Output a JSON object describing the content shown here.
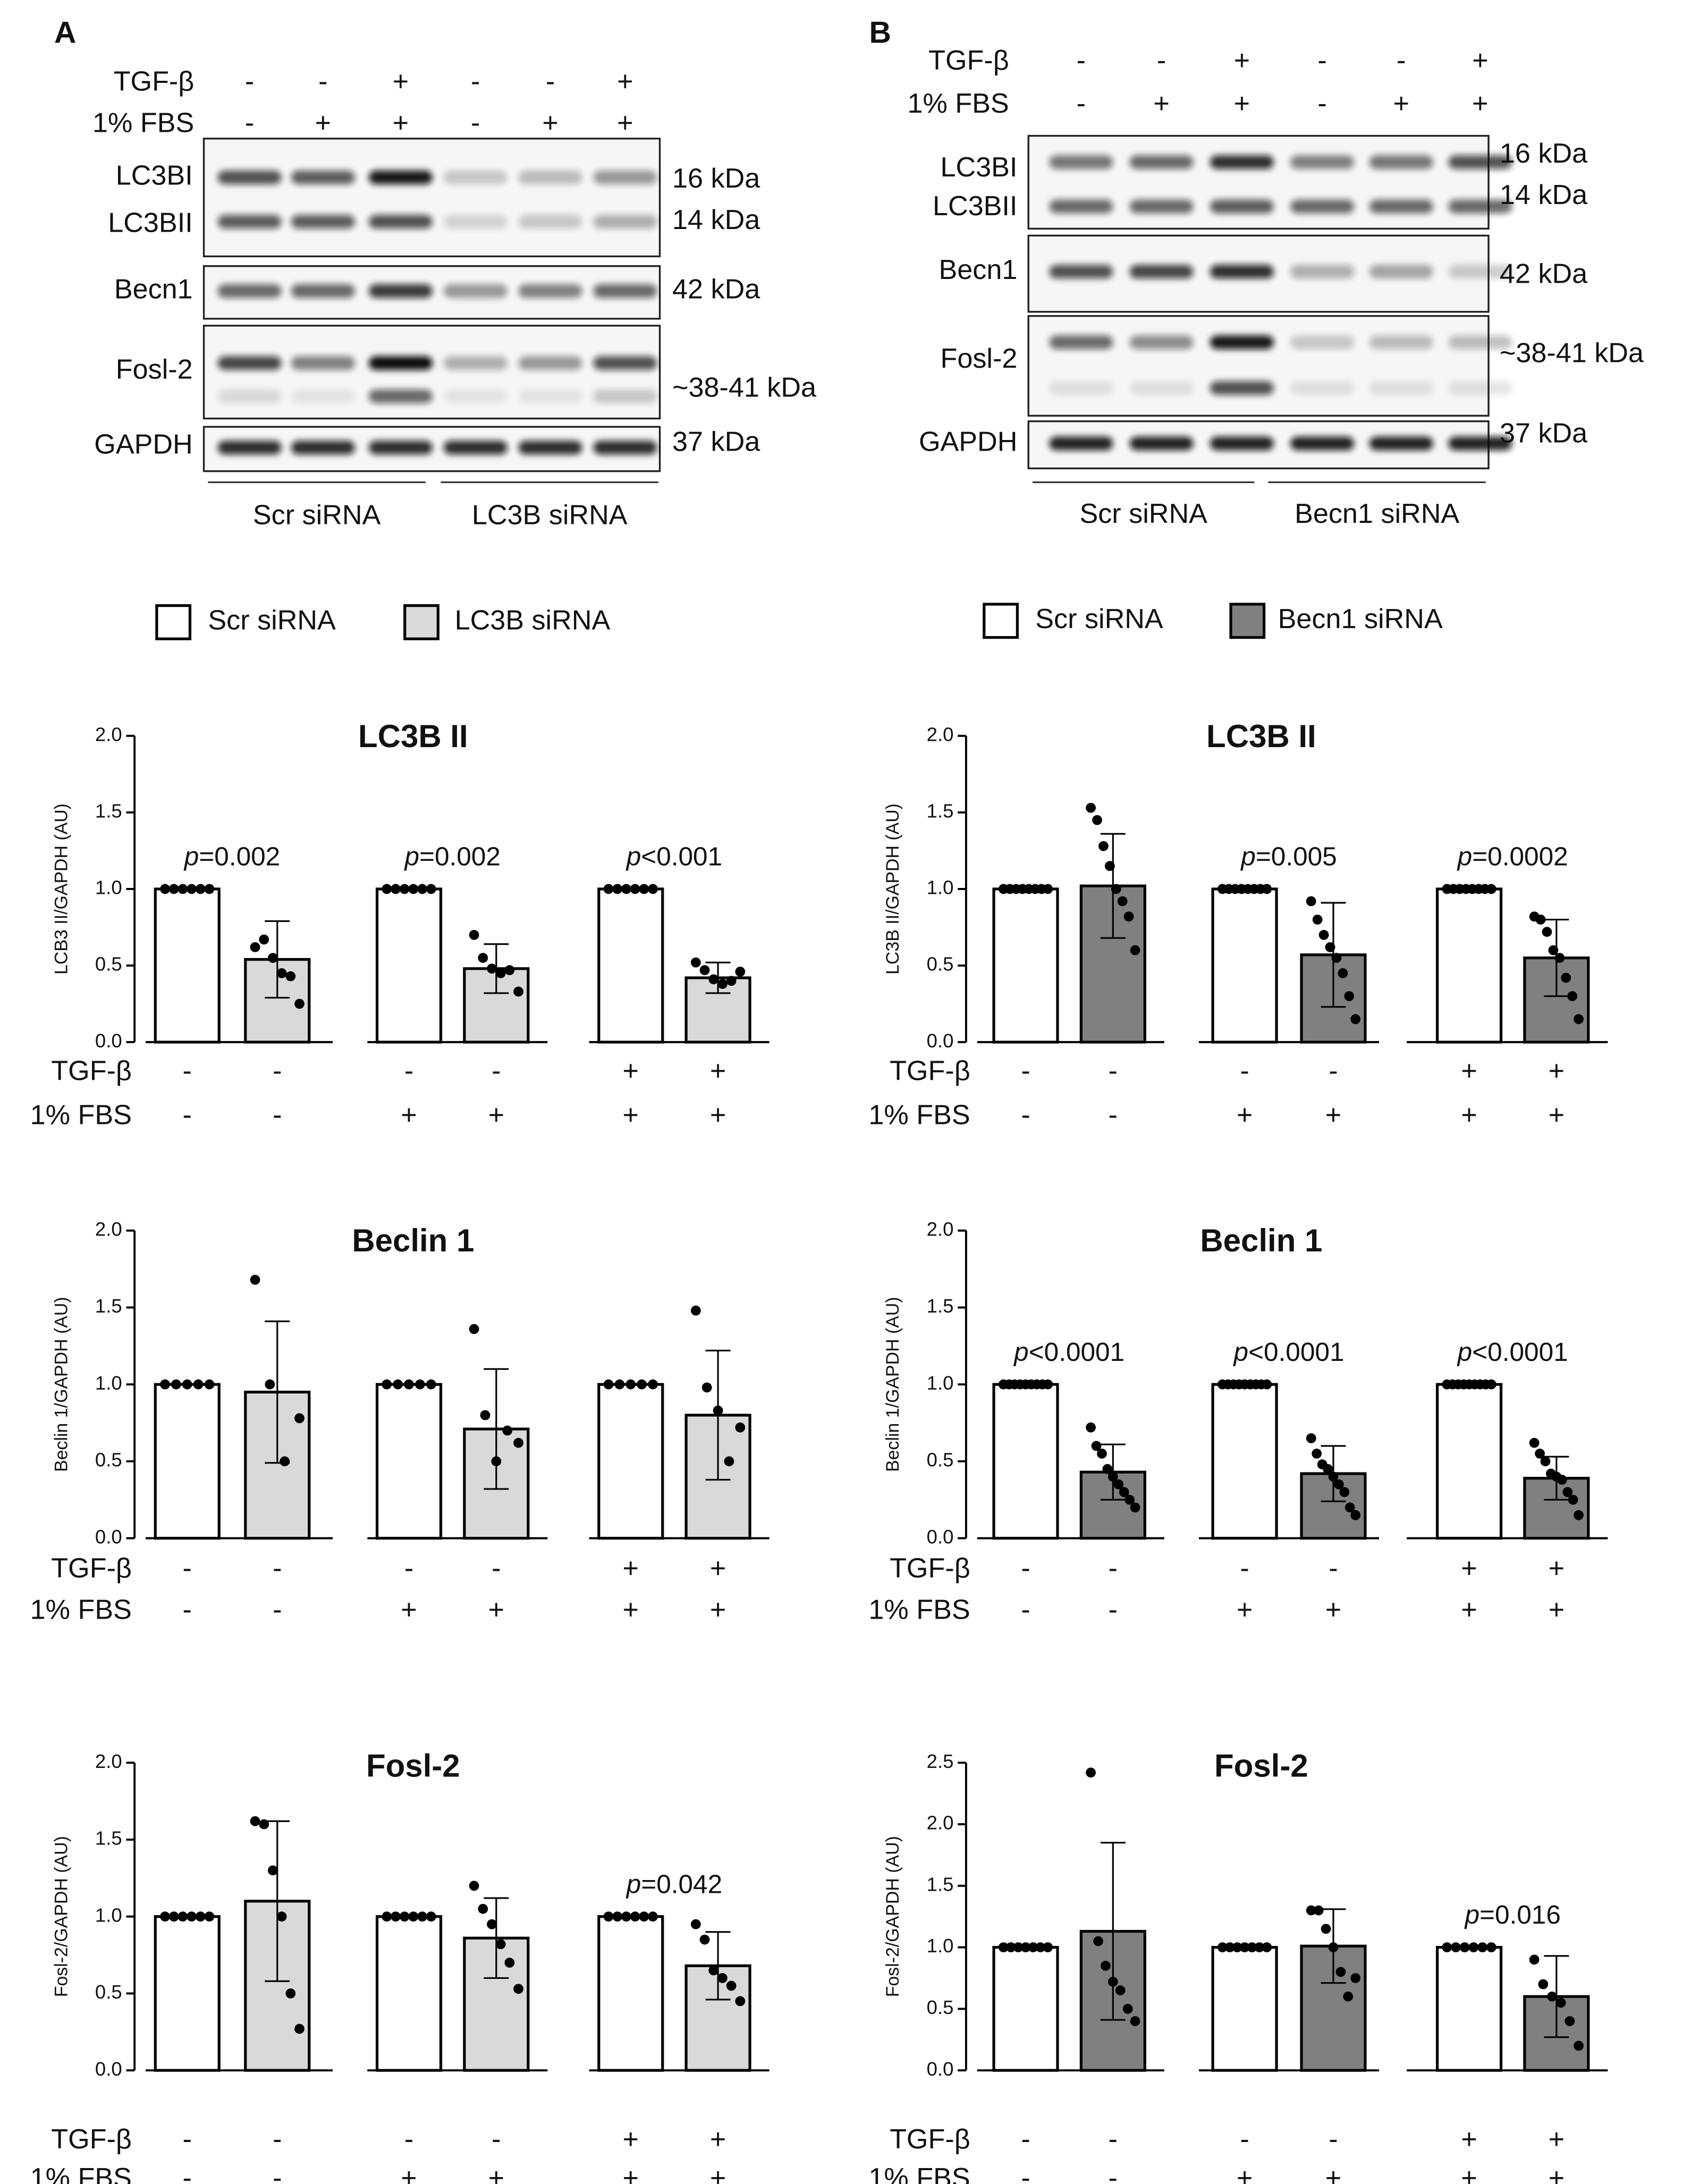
{
  "blots": [
    {
      "panel": "A",
      "conditions": [
        {
          "name": "TGF-β",
          "values": [
            "-",
            "-",
            "+",
            "-",
            "-",
            "+"
          ]
        },
        {
          "name": "1% FBS",
          "values": [
            "-",
            "+",
            "+",
            "-",
            "+",
            "+"
          ]
        }
      ],
      "rows": [
        {
          "labels": [
            "LC3BI",
            "LC3BII"
          ],
          "sizes": [
            "16 kDa",
            "14 kDa"
          ]
        },
        {
          "labels": [
            "Becn1"
          ],
          "sizes": [
            "42 kDa"
          ]
        },
        {
          "labels": [
            "Fosl-2"
          ],
          "sizes": [
            "~38-41 kDa"
          ]
        },
        {
          "labels": [
            "GAPDH"
          ],
          "sizes": [
            "37 kDa"
          ]
        }
      ],
      "groups": [
        "Scr siRNA",
        "LC3B siRNA"
      ]
    },
    {
      "panel": "B",
      "conditions": [
        {
          "name": "TGF-β",
          "values": [
            "-",
            "-",
            "+",
            "-",
            "-",
            "+"
          ]
        },
        {
          "name": "1% FBS",
          "values": [
            "-",
            "+",
            "+",
            "-",
            "+",
            "+"
          ]
        }
      ],
      "rows": [
        {
          "labels": [
            "LC3BI",
            "LC3BII"
          ],
          "sizes": [
            "16 kDa",
            "14 kDa"
          ]
        },
        {
          "labels": [
            "Becn1"
          ],
          "sizes": [
            "42 kDa"
          ]
        },
        {
          "labels": [
            "Fosl-2"
          ],
          "sizes": [
            "~38-41 kDa"
          ]
        },
        {
          "labels": [
            "GAPDH"
          ],
          "sizes": [
            "37 kDa"
          ]
        }
      ],
      "groups": [
        "Scr siRNA",
        "Becn1 siRNA"
      ]
    }
  ],
  "chart_data": [
    {
      "type": "bar",
      "title": "LC3B II",
      "ylabel": "LCB3 II/GAPDH (AU)",
      "ylim": [
        0,
        2
      ],
      "yticks": [
        {
          "value": 0,
          "label": "0.0"
        },
        {
          "value": 0.5,
          "label": "0.5"
        },
        {
          "value": 1,
          "label": "1.0"
        },
        {
          "value": 1.5,
          "label": "1.5"
        },
        {
          "value": 2,
          "label": "2.0"
        }
      ],
      "conditions": [
        {
          "name": "TGF-β",
          "values": [
            "-",
            "-",
            "-",
            "-",
            "+",
            "+"
          ]
        },
        {
          "name": "1% FBS",
          "values": [
            "-",
            "-",
            "+",
            "+",
            "+",
            "+"
          ]
        }
      ],
      "series": [
        {
          "name": "Scr siRNA",
          "color": "#ffffff",
          "values": [
            1,
            1,
            1
          ],
          "points": [
            [
              1,
              1,
              1,
              1,
              1,
              1
            ],
            [
              1,
              1,
              1,
              1,
              1,
              1
            ],
            [
              1,
              1,
              1,
              1,
              1,
              1
            ]
          ]
        },
        {
          "name": "LC3B siRNA",
          "color": "#d9d9d9",
          "values": [
            0.54,
            0.48,
            0.42
          ],
          "errors": [
            0.25,
            0.16,
            0.1
          ],
          "points": [
            [
              0.62,
              0.67,
              0.55,
              0.45,
              0.43,
              0.25
            ],
            [
              0.7,
              0.55,
              0.48,
              0.45,
              0.47,
              0.33
            ],
            [
              0.52,
              0.47,
              0.41,
              0.38,
              0.4,
              0.46
            ]
          ]
        }
      ],
      "p_values": [
        "p=0.002",
        "p=0.002",
        "p<0.001"
      ]
    },
    {
      "type": "bar",
      "title": "Beclin 1",
      "ylabel": "Beclin 1/GAPDH (AU)",
      "ylim": [
        0,
        2
      ],
      "yticks": [
        {
          "value": 0,
          "label": "0.0"
        },
        {
          "value": 0.5,
          "label": "0.5"
        },
        {
          "value": 1,
          "label": "1.0"
        },
        {
          "value": 1.5,
          "label": "1.5"
        },
        {
          "value": 2,
          "label": "2.0"
        }
      ],
      "conditions": [
        {
          "name": "TGF-β",
          "values": [
            "-",
            "-",
            "-",
            "-",
            "+",
            "+"
          ]
        },
        {
          "name": "1% FBS",
          "values": [
            "-",
            "-",
            "+",
            "+",
            "+",
            "+"
          ]
        }
      ],
      "series": [
        {
          "name": "Scr siRNA",
          "color": "#ffffff",
          "values": [
            1,
            1,
            1
          ],
          "points": [
            [
              1,
              1,
              1,
              1,
              1
            ],
            [
              1,
              1,
              1,
              1,
              1
            ],
            [
              1,
              1,
              1,
              1,
              1
            ]
          ]
        },
        {
          "name": "LC3B siRNA",
          "color": "#d9d9d9",
          "values": [
            0.95,
            0.71,
            0.8
          ],
          "errors": [
            0.46,
            0.39,
            0.42
          ],
          "points": [
            [
              1.68,
              1,
              0.5,
              0.78
            ],
            [
              1.36,
              0.8,
              0.5,
              0.7,
              0.62
            ],
            [
              1.48,
              0.98,
              0.83,
              0.5,
              0.72
            ]
          ]
        }
      ],
      "p_values": [
        null,
        null,
        null
      ]
    },
    {
      "type": "bar",
      "title": "Fosl-2",
      "ylabel": "Fosl-2/GAPDH (AU)",
      "ylim": [
        0,
        2
      ],
      "yticks": [
        {
          "value": 0,
          "label": "0.0"
        },
        {
          "value": 0.5,
          "label": "0.5"
        },
        {
          "value": 1,
          "label": "1.0"
        },
        {
          "value": 1.5,
          "label": "1.5"
        },
        {
          "value": 2,
          "label": "2.0"
        }
      ],
      "conditions": [
        {
          "name": "TGF-β",
          "values": [
            "-",
            "-",
            "-",
            "-",
            "+",
            "+"
          ]
        },
        {
          "name": "1% FBS",
          "values": [
            "-",
            "-",
            "+",
            "+",
            "+",
            "+"
          ]
        }
      ],
      "series": [
        {
          "name": "Scr siRNA",
          "color": "#ffffff",
          "values": [
            1,
            1,
            1
          ],
          "points": [
            [
              1,
              1,
              1,
              1,
              1,
              1
            ],
            [
              1,
              1,
              1,
              1,
              1,
              1
            ],
            [
              1,
              1,
              1,
              1,
              1,
              1
            ]
          ]
        },
        {
          "name": "LC3B siRNA",
          "color": "#d9d9d9",
          "values": [
            1.1,
            0.86,
            0.68
          ],
          "errors": [
            0.52,
            0.26,
            0.22
          ],
          "points": [
            [
              1.62,
              1.6,
              1.3,
              1,
              0.5,
              0.27
            ],
            [
              1.2,
              1.05,
              0.95,
              0.82,
              0.7,
              0.53
            ],
            [
              0.95,
              0.85,
              0.65,
              0.6,
              0.55,
              0.45
            ]
          ]
        }
      ],
      "p_values": [
        null,
        null,
        "p=0.042"
      ]
    },
    {
      "type": "bar",
      "title": "LC3B II",
      "ylabel": "LC3B II/GAPDH (AU)",
      "ylim": [
        0,
        2
      ],
      "yticks": [
        {
          "value": 0,
          "label": "0.0"
        },
        {
          "value": 0.5,
          "label": "0.5"
        },
        {
          "value": 1,
          "label": "1.0"
        },
        {
          "value": 1.5,
          "label": "1.5"
        },
        {
          "value": 2,
          "label": "2.0"
        }
      ],
      "conditions": [
        {
          "name": "TGF-β",
          "values": [
            "-",
            "-",
            "-",
            "-",
            "+",
            "+"
          ]
        },
        {
          "name": "1% FBS",
          "values": [
            "-",
            "-",
            "+",
            "+",
            "+",
            "+"
          ]
        }
      ],
      "series": [
        {
          "name": "Scr siRNA",
          "color": "#ffffff",
          "values": [
            1,
            1,
            1
          ],
          "points": [
            [
              1,
              1,
              1,
              1,
              1,
              1,
              1,
              1
            ],
            [
              1,
              1,
              1,
              1,
              1,
              1,
              1,
              1
            ],
            [
              1,
              1,
              1,
              1,
              1,
              1,
              1,
              1
            ]
          ]
        },
        {
          "name": "Becn1 siRNA",
          "color": "#808080",
          "values": [
            1.02,
            0.57,
            0.55
          ],
          "errors": [
            0.34,
            0.34,
            0.25
          ],
          "points": [
            [
              1.53,
              1.45,
              1.28,
              1.15,
              1,
              0.92,
              0.82,
              0.6
            ],
            [
              0.92,
              0.8,
              0.7,
              0.62,
              0.55,
              0.45,
              0.3,
              0.15
            ],
            [
              0.82,
              0.8,
              0.72,
              0.6,
              0.55,
              0.42,
              0.3,
              0.15
            ]
          ]
        }
      ],
      "p_values": [
        null,
        "p=0.005",
        "p=0.0002"
      ]
    },
    {
      "type": "bar",
      "title": "Beclin 1",
      "ylabel": "Beclin 1/GAPDH (AU)",
      "ylim": [
        0,
        2
      ],
      "yticks": [
        {
          "value": 0,
          "label": "0.0"
        },
        {
          "value": 0.5,
          "label": "0.5"
        },
        {
          "value": 1,
          "label": "1.0"
        },
        {
          "value": 1.5,
          "label": "1.5"
        },
        {
          "value": 2,
          "label": "2.0"
        }
      ],
      "conditions": [
        {
          "name": "TGF-β",
          "values": [
            "-",
            "-",
            "-",
            "-",
            "+",
            "+"
          ]
        },
        {
          "name": "1% FBS",
          "values": [
            "-",
            "-",
            "+",
            "+",
            "+",
            "+"
          ]
        }
      ],
      "series": [
        {
          "name": "Scr siRNA",
          "color": "#ffffff",
          "values": [
            1,
            1,
            1
          ],
          "points": [
            [
              1,
              1,
              1,
              1,
              1,
              1,
              1,
              1,
              1
            ],
            [
              1,
              1,
              1,
              1,
              1,
              1,
              1,
              1,
              1
            ],
            [
              1,
              1,
              1,
              1,
              1,
              1,
              1,
              1,
              1
            ]
          ]
        },
        {
          "name": "Becn1 siRNA",
          "color": "#808080",
          "values": [
            0.43,
            0.42,
            0.39
          ],
          "errors": [
            0.18,
            0.18,
            0.14
          ],
          "points": [
            [
              0.72,
              0.6,
              0.55,
              0.45,
              0.4,
              0.35,
              0.3,
              0.25,
              0.2
            ],
            [
              0.65,
              0.55,
              0.48,
              0.45,
              0.4,
              0.35,
              0.3,
              0.2,
              0.15
            ],
            [
              0.62,
              0.55,
              0.5,
              0.42,
              0.4,
              0.38,
              0.3,
              0.25,
              0.15
            ]
          ]
        }
      ],
      "p_values": [
        "p<0.0001",
        "p<0.0001",
        "p<0.0001"
      ]
    },
    {
      "type": "bar",
      "title": "Fosl-2",
      "ylabel": "Fosl-2/GAPDH (AU)",
      "ylim": [
        0,
        2.5
      ],
      "yticks": [
        {
          "value": 0,
          "label": "0.0"
        },
        {
          "value": 0.5,
          "label": "0.5"
        },
        {
          "value": 1,
          "label": "1.0"
        },
        {
          "value": 1.5,
          "label": "1.5"
        },
        {
          "value": 2,
          "label": "2.0"
        },
        {
          "value": 2.5,
          "label": "2.5"
        }
      ],
      "conditions": [
        {
          "name": "TGF-β",
          "values": [
            "-",
            "-",
            "-",
            "-",
            "+",
            "+"
          ]
        },
        {
          "name": "1% FBS",
          "values": [
            "-",
            "-",
            "+",
            "+",
            "+",
            "+"
          ]
        }
      ],
      "series": [
        {
          "name": "Scr siRNA",
          "color": "#ffffff",
          "values": [
            1,
            1,
            1
          ],
          "points": [
            [
              1,
              1,
              1,
              1,
              1,
              1,
              1
            ],
            [
              1,
              1,
              1,
              1,
              1,
              1,
              1
            ],
            [
              1,
              1,
              1,
              1,
              1,
              1
            ]
          ]
        },
        {
          "name": "Becn1 siRNA",
          "color": "#808080",
          "values": [
            1.13,
            1.01,
            0.6
          ],
          "errors": [
            0.72,
            0.3,
            0.33
          ],
          "points": [
            [
              2.42,
              1.05,
              0.85,
              0.72,
              0.65,
              0.5,
              0.4
            ],
            [
              1.3,
              1.3,
              1.15,
              1,
              0.8,
              0.6,
              0.75
            ],
            [
              0.9,
              0.7,
              0.6,
              0.55,
              0.4,
              0.2
            ]
          ]
        }
      ],
      "p_values": [
        null,
        null,
        "p=0.016"
      ]
    }
  ]
}
